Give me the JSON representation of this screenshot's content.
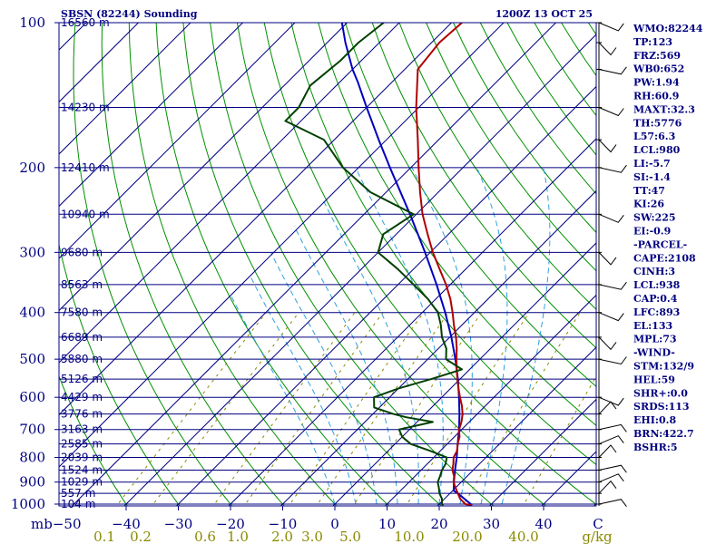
{
  "chart_data": {
    "type": "skew-t",
    "title": "SBSN (82244) Sounding",
    "time": "1200Z 13 OCT 25",
    "pressure_ticks": [
      {
        "p": 100,
        "label": "100"
      },
      {
        "p": 200,
        "label": "200"
      },
      {
        "p": 300,
        "label": "300"
      },
      {
        "p": 400,
        "label": "400"
      },
      {
        "p": 500,
        "label": "500"
      },
      {
        "p": 600,
        "label": "600"
      },
      {
        "p": 700,
        "label": "700"
      },
      {
        "p": 800,
        "label": "800"
      },
      {
        "p": 900,
        "label": "900"
      },
      {
        "p": 1000,
        "label": "1000"
      }
    ],
    "height_levels": [
      {
        "p": 100,
        "label": "16560 m"
      },
      {
        "p": 150,
        "label": "14230 m"
      },
      {
        "p": 200,
        "label": "12410 m"
      },
      {
        "p": 250,
        "label": "10940 m"
      },
      {
        "p": 300,
        "label": "9680 m"
      },
      {
        "p": 350,
        "label": "8563 m"
      },
      {
        "p": 400,
        "label": "7580 m"
      },
      {
        "p": 450,
        "label": "6689 m"
      },
      {
        "p": 500,
        "label": "5880 m"
      },
      {
        "p": 550,
        "label": "5126 m"
      },
      {
        "p": 600,
        "label": "4429 m"
      },
      {
        "p": 650,
        "label": "3776 m"
      },
      {
        "p": 700,
        "label": "3163 m"
      },
      {
        "p": 750,
        "label": "2585 m"
      },
      {
        "p": 800,
        "label": "2039 m"
      },
      {
        "p": 850,
        "label": "1524 m"
      },
      {
        "p": 900,
        "label": "1029 m"
      },
      {
        "p": 950,
        "label": "557 m"
      },
      {
        "p": 1000,
        "label": "104 m"
      }
    ],
    "temp_ticks": [
      {
        "t": -40,
        "label": "−40"
      },
      {
        "t": -30,
        "label": "−30"
      },
      {
        "t": -20,
        "label": "−20"
      },
      {
        "t": -10,
        "label": "−10"
      },
      {
        "t": 0,
        "label": "0"
      },
      {
        "t": 10,
        "label": "10"
      },
      {
        "t": 20,
        "label": "20"
      },
      {
        "t": 30,
        "label": "30"
      },
      {
        "t": 40,
        "label": "40"
      }
    ],
    "axis_start_label": "mb−50",
    "axis_end_label": "C",
    "mixing_ratio_ticks": [
      "0.1",
      "0.2",
      "0.6",
      "1.0",
      "2.0",
      "3.0",
      "5.0",
      "10.0",
      "20.0",
      "40.0",
      "g/kg"
    ],
    "temperature_profile": [
      [
        1005,
        26.5
      ],
      [
        1000,
        25.0
      ],
      [
        975,
        23.0
      ],
      [
        950,
        21.5
      ],
      [
        925,
        20.0
      ],
      [
        900,
        18.5
      ],
      [
        875,
        17.5
      ],
      [
        850,
        16.0
      ],
      [
        825,
        15.0
      ],
      [
        800,
        13.8
      ],
      [
        775,
        13.2
      ],
      [
        750,
        12.0
      ],
      [
        725,
        11.0
      ],
      [
        700,
        9.5
      ],
      [
        675,
        8.5
      ],
      [
        650,
        7.2
      ],
      [
        625,
        5.5
      ],
      [
        600,
        3.5
      ],
      [
        575,
        1.5
      ],
      [
        550,
        -0.5
      ],
      [
        525,
        -2.5
      ],
      [
        500,
        -4.5
      ],
      [
        475,
        -6.5
      ],
      [
        450,
        -8.8
      ],
      [
        425,
        -11.5
      ],
      [
        400,
        -14.2
      ],
      [
        375,
        -17.2
      ],
      [
        350,
        -20.8
      ],
      [
        325,
        -25.0
      ],
      [
        300,
        -29.5
      ],
      [
        275,
        -34.0
      ],
      [
        250,
        -38.8
      ],
      [
        225,
        -43.5
      ],
      [
        200,
        -48.5
      ],
      [
        175,
        -54.0
      ],
      [
        150,
        -60.5
      ],
      [
        125,
        -67.5
      ],
      [
        110,
        -68.5
      ],
      [
        100,
        -68.0
      ]
    ],
    "dewpoint_profile": [
      [
        1005,
        21.0
      ],
      [
        1000,
        20.5
      ],
      [
        975,
        19.5
      ],
      [
        950,
        18.0
      ],
      [
        925,
        16.8
      ],
      [
        900,
        15.5
      ],
      [
        875,
        14.8
      ],
      [
        850,
        14.0
      ],
      [
        825,
        13.5
      ],
      [
        800,
        12.5
      ],
      [
        775,
        8.0
      ],
      [
        750,
        3.0
      ],
      [
        725,
        0.0
      ],
      [
        700,
        -2.0
      ],
      [
        675,
        3.0
      ],
      [
        660,
        -3.0
      ],
      [
        650,
        -6.0
      ],
      [
        630,
        -11.0
      ],
      [
        600,
        -13.0
      ],
      [
        575,
        -10.0
      ],
      [
        550,
        -5.5
      ],
      [
        525,
        -1.5
      ],
      [
        500,
        -6.5
      ],
      [
        475,
        -8.5
      ],
      [
        450,
        -11.5
      ],
      [
        425,
        -14.0
      ],
      [
        400,
        -17.0
      ],
      [
        375,
        -21.5
      ],
      [
        350,
        -27.0
      ],
      [
        325,
        -33.0
      ],
      [
        300,
        -40.0
      ],
      [
        275,
        -42.5
      ],
      [
        250,
        -40.5
      ],
      [
        225,
        -53.0
      ],
      [
        200,
        -63.0
      ],
      [
        175,
        -72.0
      ],
      [
        160,
        -83.0
      ],
      [
        150,
        -83.0
      ],
      [
        135,
        -85.0
      ],
      [
        120,
        -84.0
      ],
      [
        110,
        -84.0
      ],
      [
        100,
        -83.0
      ]
    ],
    "parcel_profile": [
      [
        1005,
        26.5
      ],
      [
        950,
        21.5
      ],
      [
        938,
        20.2
      ],
      [
        900,
        18.6
      ],
      [
        850,
        16.5
      ],
      [
        800,
        14.4
      ],
      [
        750,
        12.0
      ],
      [
        700,
        9.5
      ],
      [
        650,
        6.6
      ],
      [
        600,
        3.3
      ],
      [
        550,
        -0.4
      ],
      [
        500,
        -4.7
      ],
      [
        450,
        -9.7
      ],
      [
        400,
        -15.6
      ],
      [
        350,
        -22.6
      ],
      [
        300,
        -31.0
      ],
      [
        250,
        -41.2
      ],
      [
        200,
        -54.0
      ],
      [
        175,
        -61.5
      ],
      [
        150,
        -70.0
      ],
      [
        133,
        -76.5
      ],
      [
        125,
        -80.0
      ],
      [
        110,
        -86.5
      ],
      [
        100,
        -91.0
      ]
    ],
    "wind_barb_levels": [
      100,
      110,
      125,
      150,
      175,
      200,
      250,
      300,
      350,
      400,
      450,
      500,
      600,
      650,
      700,
      750,
      800,
      850,
      900,
      950,
      1000
    ]
  },
  "indices": [
    "WMO:82244",
    "TP:123",
    "FRZ:569",
    "WB0:652",
    "PW:1.94",
    "RH:60.9",
    "MAXT:32.3",
    "TH:5776",
    "L57:6.3",
    "LCL:980",
    "LI:-5.7",
    "SI:-1.4",
    "TT:47",
    "KI:26",
    "SW:225",
    "EI:-0.9",
    "-PARCEL-",
    "CAPE:2108",
    "CINH:3",
    "LCL:938",
    "CAP:0.4",
    "LFC:893",
    "EL:133",
    "MPL:73",
    "-WIND-",
    "STM:132/9",
    "HEL:59",
    "SHR+:0.0",
    "SRDS:113",
    "EHI:0.8",
    "BRN:422.7",
    "BSHR:5"
  ],
  "colors": {
    "frame": "#000080",
    "isobar": "#000080",
    "isotherm": "#000080",
    "dry_adiabat": "#009000",
    "moist_adiabat": "#2fa0e0",
    "mixing_ratio": "#8a8a00",
    "temperature": "#b00000",
    "dewpoint": "#004000",
    "parcel": "#0000c0",
    "wind_barb": "#000000"
  }
}
